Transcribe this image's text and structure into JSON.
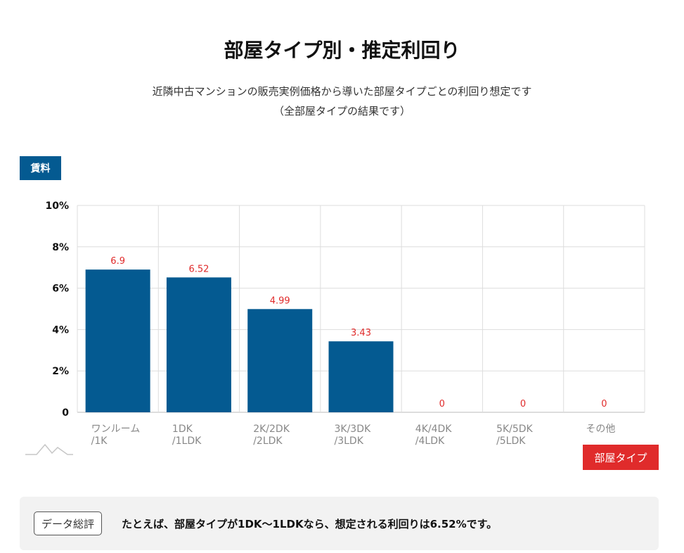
{
  "header": {
    "title": "部屋タイプ別・推定利回り",
    "subtitle_line1": "近隣中古マンションの販売実例価格から導いた部屋タイプごとの利回り想定です",
    "subtitle_line2": "（全部屋タイプの結果です）"
  },
  "chart_data": {
    "type": "bar",
    "categories": [
      [
        "ワンルーム",
        "/1K"
      ],
      [
        "1DK",
        "/1LDK"
      ],
      [
        "2K/2DK",
        "/2LDK"
      ],
      [
        "3K/3DK",
        "/3LDK"
      ],
      [
        "4K/4DK",
        "/4LDK"
      ],
      [
        "5K/5DK",
        "/5LDK"
      ],
      [
        "その他"
      ]
    ],
    "values": [
      6.9,
      6.52,
      4.99,
      3.43,
      0,
      0,
      0
    ],
    "value_labels": [
      "6.9",
      "6.52",
      "4.99",
      "3.43",
      "0",
      "0",
      "0"
    ],
    "ylabel": "賃料",
    "xlabel": "部屋タイプ",
    "ylim": [
      0,
      10
    ],
    "yticks": [
      0,
      2,
      4,
      6,
      8,
      10
    ],
    "ytick_labels": [
      "0",
      "2%",
      "4%",
      "6%",
      "8%",
      "10%"
    ],
    "grid": true,
    "colors": {
      "bar": "#045a91",
      "value_label": "#e02b2b",
      "grid": "#dddddd"
    }
  },
  "summary": {
    "tag": "データ総評",
    "text": "たとえば、部屋タイプが1DK〜1LDKなら、想定される利回りは6.52%です。"
  }
}
